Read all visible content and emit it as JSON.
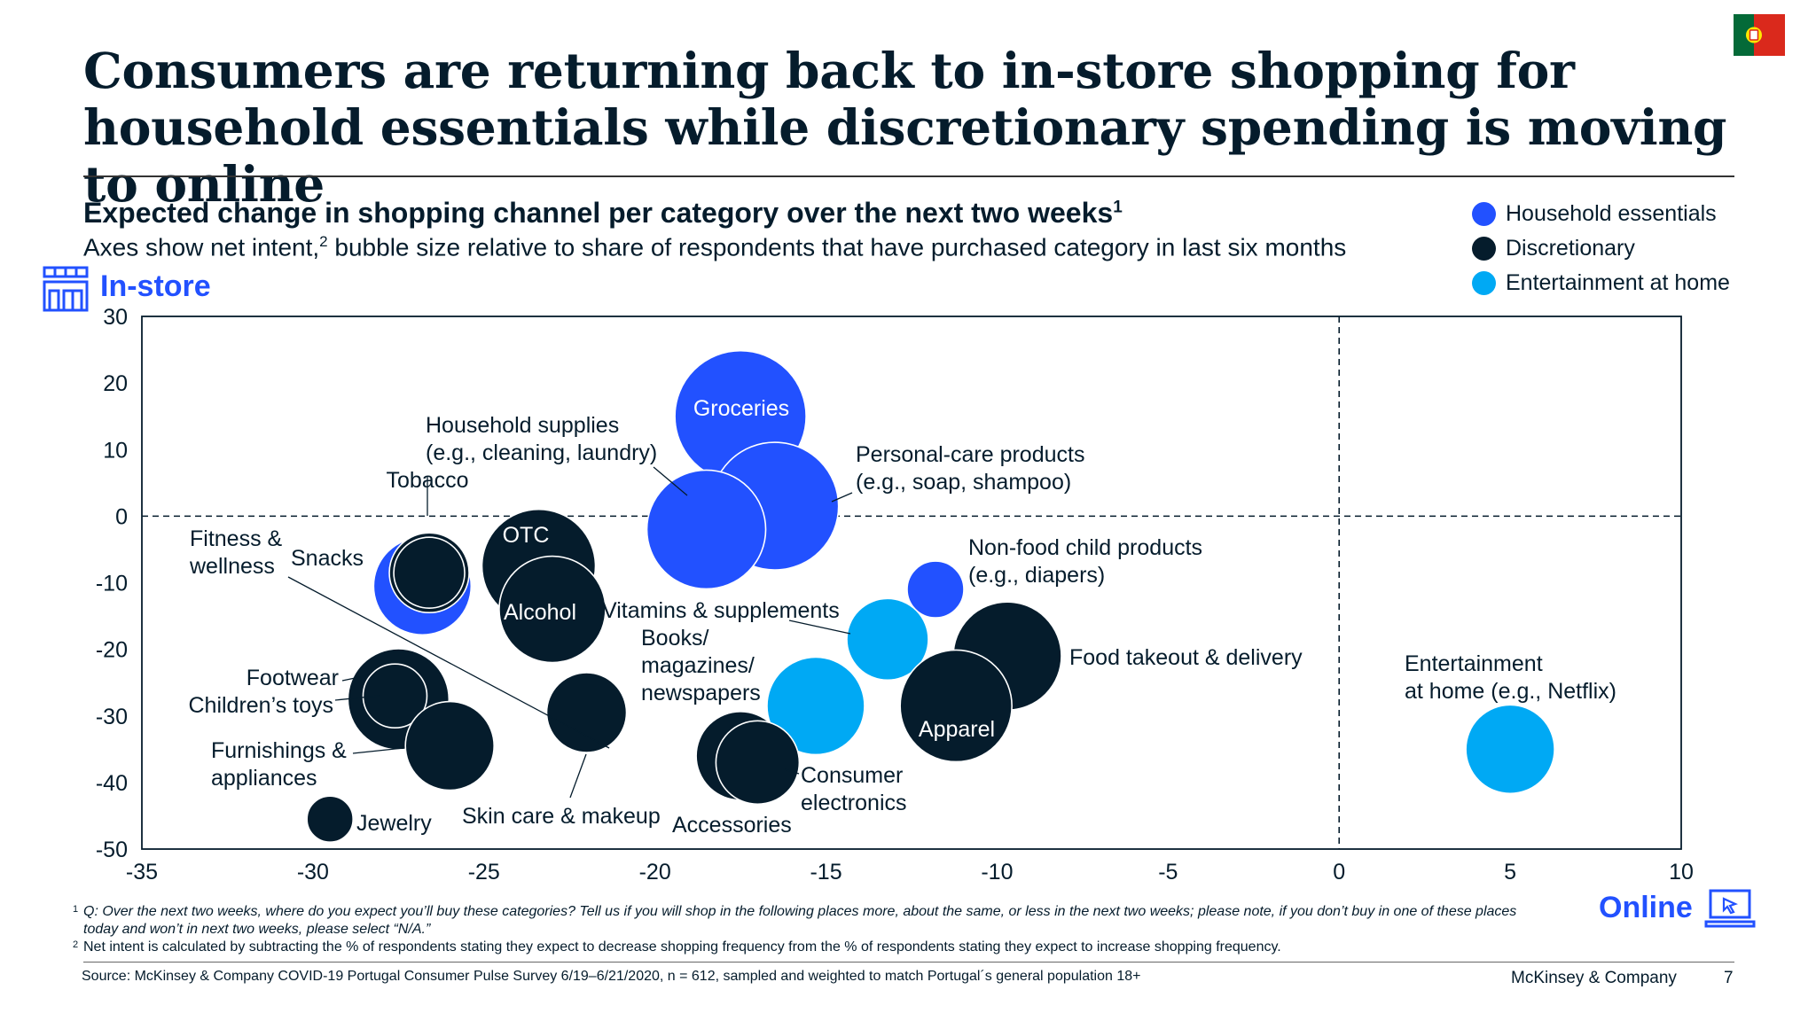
{
  "title": "Consumers are returning back to in-store shopping for household essentials while discretionary spending is moving to online",
  "subtitle": "Expected change in shopping channel per category over the next two weeks",
  "subtitle_sup": "1",
  "subtitle2_a": "Axes show net intent,",
  "subtitle2_sup": "2",
  "subtitle2_b": " bubble size relative to share of respondents that have purchased category in last six months",
  "instore_label": "In-store",
  "online_label": "Online",
  "colors": {
    "household": "#2251ff",
    "discretionary": "#051c2c",
    "entertainment": "#00a9f4",
    "text": "#051c2c",
    "accent": "#2251ff"
  },
  "icons": {
    "flag": "portugal-flag-icon",
    "instore": "store-icon",
    "online": "laptop-cursor-icon"
  },
  "chart_data": {
    "type": "scatter",
    "xlim": [
      -35,
      10
    ],
    "ylim": [
      -50,
      30
    ],
    "x_ticks": [
      -35,
      -30,
      -25,
      -20,
      -15,
      -10,
      -5,
      0,
      5,
      10
    ],
    "y_ticks": [
      30,
      20,
      10,
      0,
      -10,
      -20,
      -30,
      -40,
      -50
    ],
    "reference_lines": {
      "x": 0,
      "y": 0,
      "style": "dashed"
    },
    "legend": [
      {
        "name": "Household essentials",
        "group": "household"
      },
      {
        "name": "Discretionary",
        "group": "discretionary"
      },
      {
        "name": "Entertainment at home",
        "group": "entertainment"
      }
    ],
    "points": [
      {
        "label": "Groceries",
        "x": -17.5,
        "y": 15,
        "group": "household"
      },
      {
        "label": "Personal-care products (e.g., soap, shampoo)",
        "x": -16.5,
        "y": 1.5,
        "group": "household"
      },
      {
        "label": "Household supplies (e.g., cleaning, laundry)",
        "x": -18.5,
        "y": -2,
        "group": "household"
      },
      {
        "label": "Non-food child products (e.g., diapers)",
        "x": -11.8,
        "y": -11,
        "group": "household"
      },
      {
        "label": "Fitness & wellness",
        "x": -26.8,
        "y": -10.5,
        "group": "household"
      },
      {
        "label": "Tobacco",
        "x": -26.6,
        "y": -8.5,
        "group": "discretionary"
      },
      {
        "label": "Snacks",
        "x": -26.6,
        "y": -8.5,
        "group": "discretionary"
      },
      {
        "label": "OTC",
        "x": -23.4,
        "y": -7.5,
        "group": "discretionary"
      },
      {
        "label": "Alcohol",
        "x": -23,
        "y": -14,
        "group": "discretionary"
      },
      {
        "label": "Vitamins & supplements",
        "x": -13.2,
        "y": -18.5,
        "group": "entertainment"
      },
      {
        "label": "Books/ magazines/ newspapers",
        "x": -15.3,
        "y": -28.5,
        "group": "entertainment"
      },
      {
        "label": "Food takeout & delivery",
        "x": -9.7,
        "y": -21,
        "group": "discretionary"
      },
      {
        "label": "Apparel",
        "x": -11.2,
        "y": -28.5,
        "group": "discretionary"
      },
      {
        "label": "Footwear",
        "x": -27.5,
        "y": -27.5,
        "group": "discretionary"
      },
      {
        "label": "Children’s toys",
        "x": -27.6,
        "y": -27,
        "group": "discretionary"
      },
      {
        "label": "Furnishings & appliances",
        "x": -26,
        "y": -34.5,
        "group": "discretionary"
      },
      {
        "label": "Skin care & makeup",
        "x": -22,
        "y": -29.5,
        "group": "discretionary"
      },
      {
        "label": "Jewelry",
        "x": -29.5,
        "y": -45.5,
        "group": "discretionary"
      },
      {
        "label": "Accessories",
        "x": -17.5,
        "y": -36,
        "group": "discretionary"
      },
      {
        "label": "Consumer electronics",
        "x": -17,
        "y": -37,
        "group": "discretionary"
      },
      {
        "label": "Entertainment at home (e.g., Netflix)",
        "x": 5,
        "y": -35,
        "group": "entertainment"
      }
    ]
  },
  "chart_labels": {
    "groceries": "Groceries",
    "otc": "OTC",
    "alcohol": "Alcohol",
    "apparel": "Apparel",
    "household_supplies": [
      "Household supplies",
      "(e.g., cleaning, laundry)"
    ],
    "tobacco": "Tobacco",
    "personal_care": [
      "Personal-care products",
      "(e.g., soap, shampoo)"
    ],
    "non_food": [
      "Non-food child products",
      "(e.g., diapers)"
    ],
    "fitness": [
      "Fitness &",
      "wellness"
    ],
    "snacks": "Snacks",
    "vitamins": "Vitamins & supplements",
    "books": [
      "Books/",
      "magazines/",
      "newspapers"
    ],
    "food_takeout": "Food takeout & delivery",
    "entertainment": [
      "Entertainment",
      "at home (e.g., Netflix)"
    ],
    "footwear": "Footwear",
    "childrens_toys": "Children’s toys",
    "furnishings": [
      "Furnishings &",
      "appliances"
    ],
    "jewelry": "Jewelry",
    "skin_care": "Skin care & makeup",
    "accessories": "Accessories",
    "consumer_electronics": [
      "Consumer",
      "electronics"
    ]
  },
  "legend_labels": [
    "Household essentials",
    "Discretionary",
    "Entertainment at home"
  ],
  "footnote1_num": "1",
  "footnote1": "Q: Over the next two weeks, where do you expect you’ll buy these categories? Tell us if you will shop in the following places more, about the same, or less in the next two weeks; please note, if you don’t buy in one of these places today and won’t in next two weeks, please select “N/A.”",
  "footnote2_num": "2",
  "footnote2": "Net intent is calculated by subtracting the % of respondents stating they expect to decrease shopping frequency from the % of respondents stating they expect to increase shopping frequency.",
  "source": "Source: McKinsey & Company COVID-19 Portugal Consumer Pulse Survey 6/19–6/21/2020, n = 612, sampled and weighted to match Portugal´s general population 18+",
  "company": "McKinsey & Company",
  "page_number": "7"
}
